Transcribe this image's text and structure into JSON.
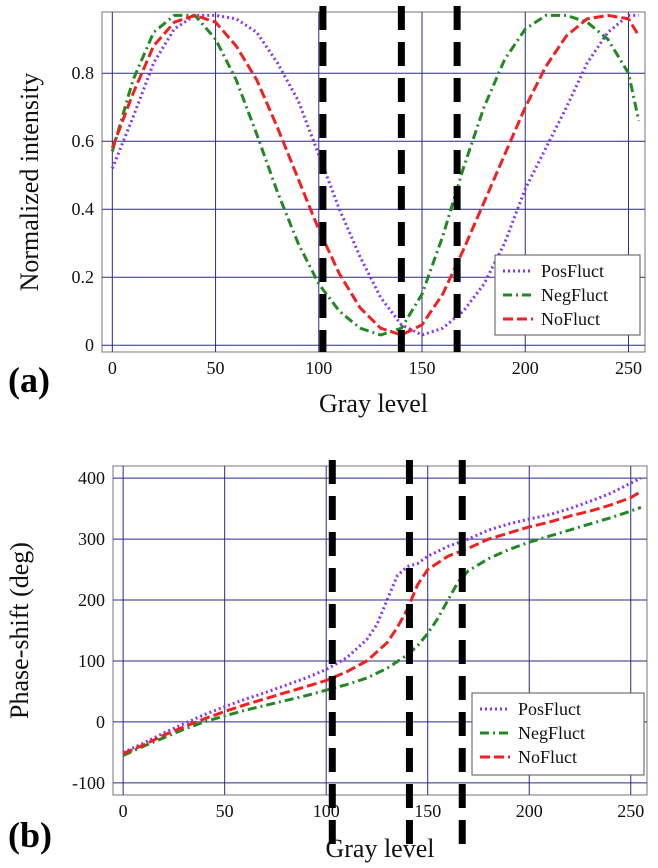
{
  "chart_data": [
    {
      "panel_label": "(a)",
      "type": "line",
      "xlabel": "Gray level",
      "ylabel": "Normalized intensity",
      "xlim": [
        -5,
        258
      ],
      "ylim": [
        -0.02,
        0.98
      ],
      "xticks": [
        0,
        50,
        100,
        150,
        200,
        250
      ],
      "yticks": [
        0,
        0.2,
        0.4,
        0.6,
        0.8
      ],
      "ytick_labels": [
        "0",
        "0.2",
        "0.4",
        "0.6",
        "0.8"
      ],
      "grid": true,
      "vlines": [
        102,
        140,
        167
      ],
      "legend_position": "bottom-right",
      "series": [
        {
          "name": "PosFluct",
          "color": "#8833ee",
          "dash": "dotted",
          "x": [
            0,
            10,
            20,
            30,
            40,
            50,
            60,
            70,
            80,
            90,
            100,
            110,
            120,
            130,
            140,
            150,
            160,
            170,
            180,
            190,
            200,
            210,
            220,
            230,
            240,
            250,
            255
          ],
          "y": [
            0.52,
            0.67,
            0.83,
            0.93,
            0.97,
            0.97,
            0.96,
            0.92,
            0.83,
            0.72,
            0.56,
            0.4,
            0.26,
            0.14,
            0.06,
            0.03,
            0.05,
            0.1,
            0.18,
            0.3,
            0.46,
            0.58,
            0.7,
            0.83,
            0.92,
            0.97,
            0.97
          ]
        },
        {
          "name": "NegFluct",
          "color": "#228822",
          "dash": "dashdot",
          "x": [
            0,
            10,
            20,
            30,
            40,
            50,
            60,
            70,
            80,
            90,
            100,
            110,
            120,
            130,
            140,
            150,
            160,
            170,
            180,
            190,
            200,
            210,
            220,
            230,
            240,
            250,
            255
          ],
          "y": [
            0.57,
            0.78,
            0.92,
            0.97,
            0.97,
            0.9,
            0.78,
            0.62,
            0.45,
            0.3,
            0.18,
            0.1,
            0.05,
            0.03,
            0.05,
            0.15,
            0.32,
            0.52,
            0.7,
            0.84,
            0.93,
            0.97,
            0.97,
            0.95,
            0.9,
            0.8,
            0.66
          ]
        },
        {
          "name": "NoFluct",
          "color": "#ee2222",
          "dash": "dashed",
          "x": [
            0,
            10,
            20,
            30,
            40,
            50,
            60,
            70,
            80,
            90,
            100,
            110,
            120,
            130,
            140,
            150,
            160,
            170,
            180,
            190,
            200,
            210,
            220,
            230,
            240,
            250,
            255
          ],
          "y": [
            0.58,
            0.74,
            0.88,
            0.95,
            0.97,
            0.95,
            0.88,
            0.78,
            0.64,
            0.49,
            0.34,
            0.21,
            0.11,
            0.05,
            0.03,
            0.06,
            0.15,
            0.28,
            0.42,
            0.56,
            0.7,
            0.82,
            0.91,
            0.96,
            0.97,
            0.96,
            0.91
          ]
        }
      ]
    },
    {
      "panel_label": "(b)",
      "type": "line",
      "xlabel": "Gray level",
      "ylabel": "Phase-shift (deg)",
      "xlim": [
        -5,
        258
      ],
      "ylim": [
        -120,
        420
      ],
      "xticks": [
        0,
        50,
        100,
        150,
        200,
        250
      ],
      "yticks": [
        -100,
        0,
        100,
        200,
        300,
        400
      ],
      "ytick_labels": [
        "-100",
        "0",
        "100",
        "200",
        "300",
        "400"
      ],
      "grid": true,
      "vlines": [
        103,
        141,
        167
      ],
      "legend_position": "bottom-right",
      "series": [
        {
          "name": "PosFluct",
          "color": "#8833ee",
          "dash": "dotted",
          "x": [
            0,
            10,
            20,
            30,
            40,
            50,
            60,
            70,
            80,
            90,
            100,
            110,
            120,
            125,
            130,
            135,
            140,
            145,
            150,
            160,
            170,
            180,
            190,
            200,
            210,
            220,
            230,
            240,
            250,
            255
          ],
          "y": [
            -50,
            -35,
            -18,
            -3,
            12,
            25,
            37,
            48,
            60,
            72,
            86,
            105,
            135,
            160,
            200,
            240,
            255,
            260,
            272,
            288,
            300,
            315,
            325,
            333,
            340,
            350,
            362,
            375,
            392,
            400
          ]
        },
        {
          "name": "NegFluct",
          "color": "#228822",
          "dash": "dashdot",
          "x": [
            0,
            10,
            20,
            30,
            40,
            50,
            60,
            70,
            80,
            90,
            100,
            110,
            120,
            130,
            140,
            145,
            150,
            155,
            160,
            165,
            170,
            180,
            190,
            200,
            210,
            220,
            230,
            240,
            250,
            255
          ],
          "y": [
            -55,
            -40,
            -26,
            -12,
            0,
            10,
            19,
            27,
            35,
            43,
            52,
            61,
            72,
            88,
            110,
            125,
            145,
            170,
            200,
            230,
            248,
            268,
            283,
            295,
            305,
            315,
            325,
            335,
            346,
            352
          ]
        },
        {
          "name": "NoFluct",
          "color": "#ee2222",
          "dash": "dashed",
          "x": [
            0,
            10,
            20,
            30,
            40,
            50,
            60,
            70,
            80,
            90,
            100,
            110,
            120,
            130,
            135,
            140,
            145,
            150,
            160,
            170,
            180,
            190,
            200,
            210,
            220,
            230,
            240,
            250,
            255
          ],
          "y": [
            -52,
            -38,
            -22,
            -8,
            5,
            17,
            28,
            38,
            48,
            58,
            68,
            82,
            100,
            130,
            155,
            185,
            225,
            250,
            272,
            285,
            300,
            310,
            320,
            328,
            338,
            346,
            356,
            368,
            378
          ]
        }
      ]
    }
  ]
}
